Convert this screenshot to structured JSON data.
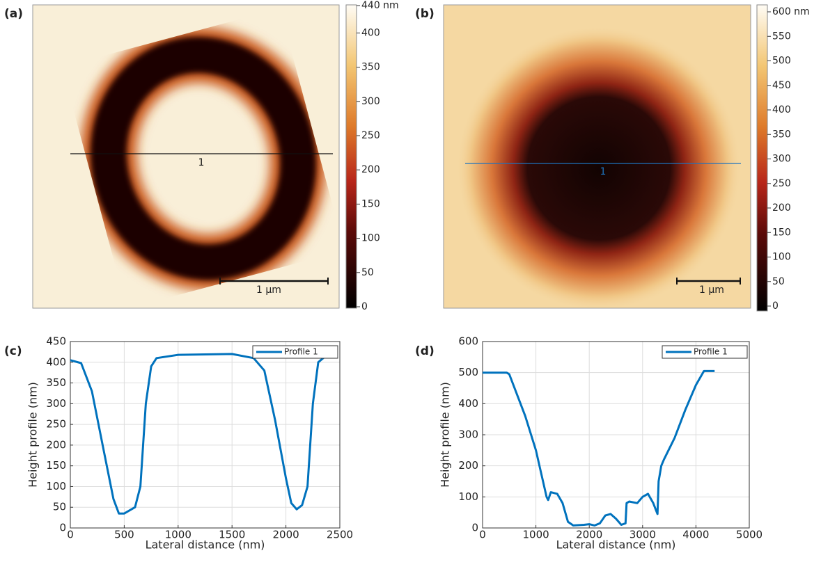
{
  "chart_data": [
    {
      "type": "image",
      "panel_label": "(a)",
      "profile_label": "1",
      "scale_bar_label": "1 µm",
      "clim": [
        0,
        440
      ],
      "cticks": [
        0,
        50,
        100,
        150,
        200,
        250,
        300,
        350,
        400,
        {
          "value": 440,
          "label": "440 nm"
        }
      ]
    },
    {
      "type": "image",
      "panel_label": "(b)",
      "profile_label": "1",
      "scale_bar_label": "1 µm",
      "clim": [
        0,
        600
      ],
      "cticks": [
        0,
        50,
        100,
        150,
        200,
        250,
        300,
        350,
        400,
        450,
        500,
        550,
        {
          "value": 600,
          "label": "600 nm"
        }
      ]
    },
    {
      "type": "line",
      "panel_label": "(c)",
      "xlabel": "Lateral distance (nm)",
      "ylabel": "Height profile (nm)",
      "x": [
        0,
        100,
        200,
        300,
        400,
        450,
        500,
        600,
        650,
        700,
        750,
        800,
        1000,
        1500,
        1700,
        1800,
        1900,
        2000,
        2050,
        2100,
        2150,
        2200,
        2250,
        2300,
        2400,
        2430
      ],
      "series": [
        {
          "name": "Profile 1",
          "color": "#0072bd",
          "values": [
            405,
            398,
            330,
            200,
            70,
            35,
            35,
            50,
            100,
            300,
            390,
            410,
            418,
            420,
            410,
            380,
            260,
            120,
            60,
            45,
            55,
            100,
            300,
            400,
            422,
            425
          ]
        }
      ],
      "xlim": [
        0,
        2500
      ],
      "xticks": [
        0,
        500,
        1000,
        1500,
        2000,
        2500
      ],
      "ylim": [
        0,
        450
      ],
      "yticks": [
        0,
        50,
        100,
        150,
        200,
        250,
        300,
        350,
        400,
        450
      ],
      "grid": true,
      "legend": "upper-right"
    },
    {
      "type": "line",
      "panel_label": "(d)",
      "xlabel": "Lateral distance (nm)",
      "ylabel": "Height profile (nm)",
      "x": [
        0,
        450,
        500,
        800,
        1000,
        1200,
        1230,
        1280,
        1400,
        1500,
        1600,
        1700,
        1900,
        2000,
        2100,
        2200,
        2300,
        2400,
        2500,
        2600,
        2680,
        2700,
        2750,
        2900,
        3000,
        3100,
        3200,
        3280,
        3300,
        3350,
        3400,
        3600,
        3800,
        4000,
        4150,
        4200,
        4350
      ],
      "series": [
        {
          "name": "Profile 1",
          "color": "#0072bd",
          "values": [
            500,
            500,
            495,
            360,
            250,
            100,
            90,
            115,
            110,
            80,
            20,
            8,
            10,
            12,
            8,
            15,
            40,
            45,
            30,
            10,
            15,
            80,
            85,
            80,
            100,
            110,
            80,
            45,
            150,
            200,
            220,
            290,
            380,
            460,
            505,
            505,
            505
          ]
        }
      ],
      "xlim": [
        0,
        5000
      ],
      "xticks": [
        0,
        1000,
        2000,
        3000,
        4000,
        5000
      ],
      "ylim": [
        0,
        600
      ],
      "yticks": [
        0,
        100,
        200,
        300,
        400,
        500,
        600
      ],
      "grid": true,
      "legend": "upper-right"
    }
  ]
}
